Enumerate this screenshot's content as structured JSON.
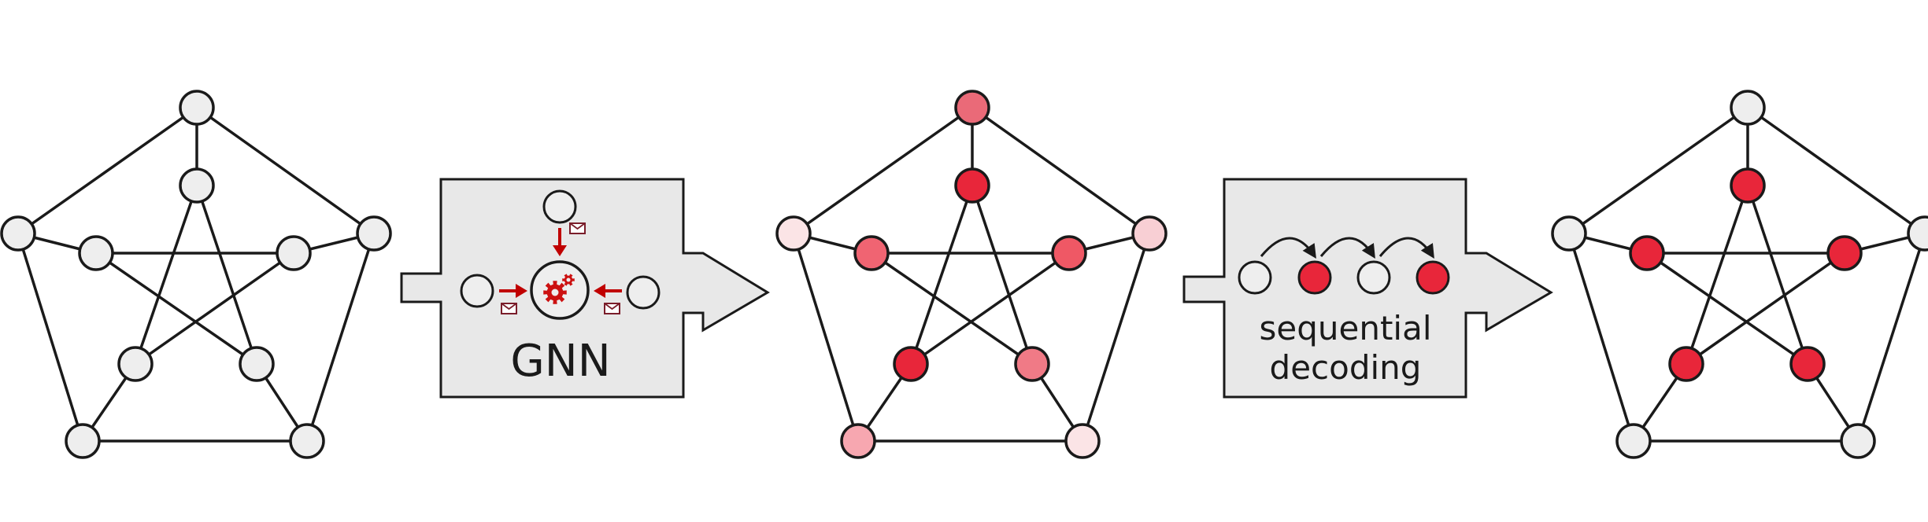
{
  "colors": {
    "edge": "#1a1a1a",
    "node_stroke": "#1a1a1a",
    "box_fill": "#e8e8e8",
    "accent_red": "#c00000",
    "gear_red": "#cc1111"
  },
  "graphs": [
    {
      "name": "input-graph",
      "node_colors": [
        "#eeeeee",
        "#eeeeee",
        "#eeeeee",
        "#eeeeee",
        "#eeeeee",
        "#eeeeee",
        "#eeeeee",
        "#eeeeee",
        "#eeeeee",
        "#eeeeee"
      ]
    },
    {
      "name": "probability-graph",
      "node_colors": [
        "#ea6a78",
        "#fbe4e6",
        "#f8cfd4",
        "#f7a7b0",
        "#fbe4e6",
        "#e8263a",
        "#f06472",
        "#ef5865",
        "#e8263a",
        "#f07a86"
      ]
    },
    {
      "name": "solution-graph",
      "node_colors": [
        "#eeeeee",
        "#eeeeee",
        "#eeeeee",
        "#eeeeee",
        "#eeeeee",
        "#e8263a",
        "#e8263a",
        "#e8263a",
        "#e8263a",
        "#e8263a"
      ]
    }
  ],
  "gnn_box": {
    "label": "GNN",
    "icons": [
      "envelope-icon",
      "gear-icon",
      "arrow-right-icon",
      "arrow-down-icon",
      "arrow-left-icon"
    ]
  },
  "decoding_box": {
    "label_line1": "sequential",
    "label_line2": "decoding",
    "sequence_colors": [
      "#eeeeee",
      "#e8263a",
      "#eeeeee",
      "#e8263a"
    ]
  }
}
